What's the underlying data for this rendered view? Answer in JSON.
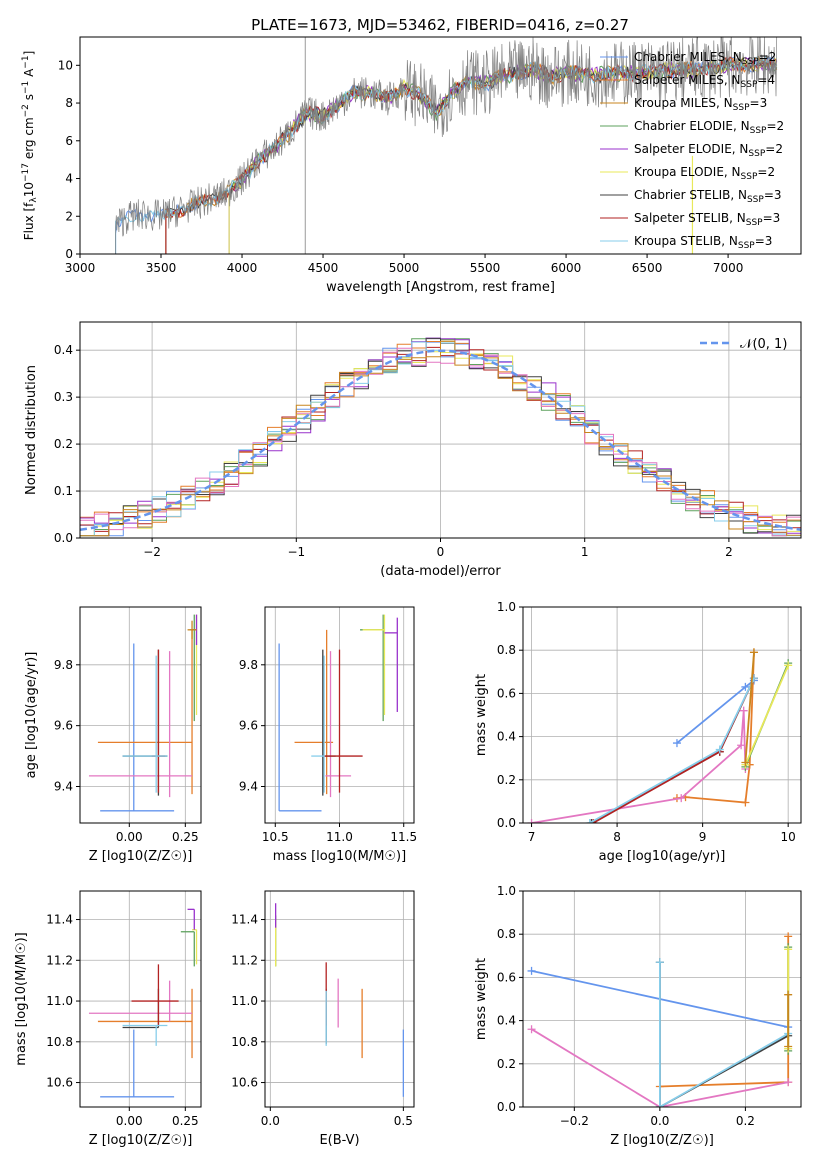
{
  "figure": {
    "title": "PLATE=1673, MJD=53462, FIBERID=0416, z=0.27"
  },
  "chart_data": [
    {
      "id": "spectrum",
      "type": "line",
      "title": "PLATE=1673, MJD=53462, FIBERID=0416, z=0.27",
      "xlabel": "wavelength [Angstrom, rest frame]",
      "ylabel": "Flux [f_λ 10^-17 erg cm^-2 s^-1 A^-1]",
      "xlim": [
        3000,
        7450
      ],
      "ylim": [
        0,
        11.5
      ],
      "xticks": [
        3000,
        3500,
        4000,
        4500,
        5000,
        5500,
        6000,
        6500,
        7000
      ],
      "yticks": [
        0,
        2,
        4,
        6,
        8,
        10
      ],
      "grid": false,
      "legend": "top-right",
      "data_curve": {
        "x": [
          3220,
          3300,
          3400,
          3500,
          3600,
          3700,
          3800,
          3900,
          4000,
          4100,
          4200,
          4300,
          4400,
          4500,
          4600,
          4700,
          4800,
          4900,
          5000,
          5100,
          5200,
          5300,
          5400,
          5500,
          5600,
          5700,
          5800,
          5900,
          6000,
          6200,
          6400,
          6600,
          6800,
          7000,
          7200,
          7300
        ],
        "values": [
          1.5,
          2.0,
          2.1,
          2.0,
          2.3,
          2.6,
          2.9,
          3.2,
          3.9,
          5.0,
          5.6,
          6.5,
          7.5,
          7.3,
          8.0,
          8.6,
          8.5,
          8.2,
          8.8,
          8.4,
          7.5,
          8.6,
          9.2,
          9.0,
          9.4,
          9.6,
          9.8,
          9.4,
          9.6,
          9.5,
          9.6,
          9.7,
          9.8,
          10.0,
          10.1,
          10.0
        ]
      },
      "model_lines": [
        {
          "name": "Chabrier MILES, N_SSP=2",
          "color": "#6495ED",
          "start": 3220
        },
        {
          "name": "Salpeter MILES, N_SSP=4",
          "color": "#E57E2B",
          "start": 3530
        },
        {
          "name": "Kroupa MILES, N_SSP=3",
          "color": "#C8861E",
          "start": 3530
        },
        {
          "name": "Chabrier ELODIE, N_SSP=2",
          "color": "#5EA25E",
          "start": 3920
        },
        {
          "name": "Salpeter ELODIE, N_SSP=2",
          "color": "#9932CC",
          "start": 3920
        },
        {
          "name": "Kroupa ELODIE, N_SSP=2",
          "color": "#E8E85A",
          "start": 3920
        },
        {
          "name": "Chabrier STELIB, N_SSP=3",
          "color": "#404040",
          "start": 3530
        },
        {
          "name": "Salpeter STELIB, N_SSP=3",
          "color": "#B22222",
          "start": 3530
        },
        {
          "name": "Kroupa STELIB, N_SSP=3",
          "color": "#87CEEB",
          "start": 3220
        }
      ],
      "legend_entries": [
        "Chabrier MILES, N_SSP=2",
        "Salpeter MILES, N_SSP=4",
        "Kroupa MILES, N_SSP=3",
        "Chabrier ELODIE, N_SSP=2",
        "Salpeter ELODIE, N_SSP=2",
        "Kroupa ELODIE, N_SSP=2",
        "Chabrier STELIB, N_SSP=3",
        "Salpeter STELIB, N_SSP=3",
        "Kroupa STELIB, N_SSP=3"
      ]
    },
    {
      "id": "residuals",
      "type": "line",
      "xlabel": "(data-model)/error",
      "ylabel": "Normed distribution",
      "xlim": [
        -2.5,
        2.5
      ],
      "ylim": [
        0,
        0.46
      ],
      "xticks": [
        -2,
        -1,
        0,
        1,
        2
      ],
      "yticks": [
        0.0,
        0.1,
        0.2,
        0.3,
        0.4
      ],
      "grid": true,
      "legend": "top-right",
      "legend_entries": [
        "𝒩(0, 1)"
      ],
      "bin_width": 0.1,
      "curve": {
        "name": "𝒩(0, 1)",
        "mean": 0,
        "sigma": 1,
        "color": "#6495ED"
      },
      "histogram_colors": [
        "#6495ED",
        "#E57E2B",
        "#5EA25E",
        "#9932CC",
        "#E8E85A",
        "#404040",
        "#B22222",
        "#87CEEB",
        "#E377C2",
        "#C8861E"
      ]
    },
    {
      "id": "z-age",
      "type": "scatter",
      "xlabel": "Z [log10(Z/Z☉)]",
      "ylabel": "age  [log10(age/yr)]",
      "xlim": [
        -0.22,
        0.32
      ],
      "ylim": [
        9.28,
        9.99
      ],
      "xticks": [
        0.0,
        0.25
      ],
      "yticks": [
        9.4,
        9.6,
        9.8
      ],
      "grid": true,
      "errorbars": [
        {
          "color": "#6495ED",
          "x": 0.02,
          "xerr": [
            0.15,
            0.18
          ],
          "y": 9.32,
          "yerr": [
            0.0,
            0.55
          ]
        },
        {
          "color": "#E57E2B",
          "x": 0.28,
          "xerr": [
            0.42,
            0.0
          ],
          "y": 9.545,
          "yerr": [
            0.17,
            0.37
          ]
        },
        {
          "color": "#E377C2",
          "x": 0.18,
          "xerr": [
            0.36,
            0.1
          ],
          "y": 9.435,
          "yerr": [
            0.07,
            0.41
          ]
        },
        {
          "color": "#404040",
          "x": 0.13,
          "xerr": [
            0.16,
            0.04
          ],
          "y": 9.5,
          "yerr": [
            0.13,
            0.35
          ]
        },
        {
          "color": "#B22222",
          "x": 0.13,
          "xerr": [
            0.03,
            0.03
          ],
          "y": 9.5,
          "yerr": [
            0.12,
            0.35
          ]
        },
        {
          "color": "#87CEEB",
          "x": 0.12,
          "xerr": [
            0.15,
            0.05
          ],
          "y": 9.5,
          "yerr": [
            0.12,
            0.33
          ]
        },
        {
          "color": "#5EA25E",
          "x": 0.29,
          "xerr": [
            0.02,
            0.01
          ],
          "y": 9.915,
          "yerr": [
            0.3,
            0.05
          ]
        },
        {
          "color": "#E8E85A",
          "x": 0.3,
          "xerr": [
            0.01,
            0.0
          ],
          "y": 9.915,
          "yerr": [
            0.28,
            0.05
          ]
        },
        {
          "color": "#9932CC",
          "x": 0.3,
          "xerr": [
            0.02,
            0.0
          ],
          "y": 9.915,
          "yerr": [
            0.05,
            0.05
          ]
        },
        {
          "color": "#C8861E",
          "x": 0.28,
          "xerr": [
            0.02,
            0.02
          ],
          "y": 9.915,
          "yerr": [
            0.03,
            0.03
          ]
        }
      ]
    },
    {
      "id": "mass-age",
      "type": "scatter",
      "xlabel": "mass [log10(M/M☉)]",
      "ylabel": "",
      "xlim": [
        10.42,
        11.58
      ],
      "ylim": [
        9.28,
        9.99
      ],
      "xticks": [
        10.5,
        11.0,
        11.5
      ],
      "yticks": [
        9.4,
        9.6,
        9.8
      ],
      "grid": true,
      "errorbars": [
        {
          "color": "#6495ED",
          "x": 10.53,
          "xerr": [
            0.0,
            0.33
          ],
          "y": 9.32,
          "yerr": [
            0.0,
            0.55
          ]
        },
        {
          "color": "#E57E2B",
          "x": 10.9,
          "xerr": [
            0.25,
            0.05
          ],
          "y": 9.545,
          "yerr": [
            0.17,
            0.37
          ]
        },
        {
          "color": "#E377C2",
          "x": 10.93,
          "xerr": [
            0.04,
            0.16
          ],
          "y": 9.435,
          "yerr": [
            0.07,
            0.41
          ]
        },
        {
          "color": "#404040",
          "x": 10.87,
          "xerr": [
            0.0,
            0.1
          ],
          "y": 9.5,
          "yerr": [
            0.13,
            0.35
          ]
        },
        {
          "color": "#B22222",
          "x": 11.0,
          "xerr": [
            0.12,
            0.18
          ],
          "y": 9.5,
          "yerr": [
            0.12,
            0.35
          ]
        },
        {
          "color": "#87CEEB",
          "x": 10.88,
          "xerr": [
            0.1,
            0.0
          ],
          "y": 9.5,
          "yerr": [
            0.12,
            0.33
          ]
        },
        {
          "color": "#5EA25E",
          "x": 11.34,
          "xerr": [
            0.18,
            0.0
          ],
          "y": 9.915,
          "yerr": [
            0.3,
            0.05
          ]
        },
        {
          "color": "#E8E85A",
          "x": 11.35,
          "xerr": [
            0.17,
            0.0
          ],
          "y": 9.915,
          "yerr": [
            0.28,
            0.05
          ]
        },
        {
          "color": "#9932CC",
          "x": 11.45,
          "xerr": [
            0.1,
            0.0
          ],
          "y": 9.905,
          "yerr": [
            0.26,
            0.05
          ]
        }
      ]
    },
    {
      "id": "age-massweight",
      "type": "line",
      "xlabel": "age  [log10(age/yr)]",
      "ylabel": "mass weight",
      "xlim": [
        6.9,
        10.15
      ],
      "ylim": [
        0,
        1.0
      ],
      "xticks": [
        7,
        8,
        9,
        10
      ],
      "yticks": [
        0.0,
        0.2,
        0.4,
        0.6,
        0.8,
        1.0
      ],
      "grid": true,
      "series": [
        {
          "color": "#6495ED",
          "x": [
            8.7,
            9.5,
            9.6
          ],
          "values": [
            0.37,
            0.63,
            0.66
          ]
        },
        {
          "color": "#E57E2B",
          "x": [
            8.7,
            8.8,
            9.5,
            9.55,
            9.6
          ],
          "values": [
            0.115,
            0.12,
            0.095,
            0.27,
            0.79
          ]
        },
        {
          "color": "#E377C2",
          "x": [
            7.0,
            8.75,
            9.45,
            9.48,
            9.5
          ],
          "values": [
            0.0,
            0.115,
            0.36,
            0.52,
            0.25
          ]
        },
        {
          "color": "#404040",
          "x": [
            7.7,
            9.2,
            9.6
          ],
          "values": [
            0.0,
            0.33,
            0.67
          ]
        },
        {
          "color": "#B22222",
          "x": [
            7.72,
            9.2,
            9.6
          ],
          "values": [
            0.0,
            0.33,
            0.67
          ]
        },
        {
          "color": "#87CEEB",
          "x": [
            7.68,
            9.2,
            9.6
          ],
          "values": [
            0.0,
            0.34,
            0.67
          ]
        },
        {
          "color": "#5EA25E",
          "x": [
            9.5,
            10.0
          ],
          "values": [
            0.26,
            0.74
          ]
        },
        {
          "color": "#E8E85A",
          "x": [
            9.5,
            10.0
          ],
          "values": [
            0.27,
            0.73
          ]
        },
        {
          "color": "#C8861E",
          "x": [
            9.5,
            9.6
          ],
          "values": [
            0.28,
            0.79
          ]
        }
      ]
    },
    {
      "id": "z-mass",
      "type": "scatter",
      "xlabel": "Z [log10(Z/Z☉)]",
      "ylabel": "mass [log10(M/M☉)]",
      "xlim": [
        -0.22,
        0.32
      ],
      "ylim": [
        10.48,
        11.54
      ],
      "xticks": [
        0.0,
        0.25
      ],
      "yticks": [
        10.6,
        10.8,
        11.0,
        11.2,
        11.4
      ],
      "grid": true,
      "errorbars": [
        {
          "color": "#6495ED",
          "x": 0.02,
          "xerr": [
            0.15,
            0.18
          ],
          "y": 10.53,
          "yerr": [
            0.0,
            0.33
          ]
        },
        {
          "color": "#E57E2B",
          "x": 0.28,
          "xerr": [
            0.42,
            0.0
          ],
          "y": 10.9,
          "yerr": [
            0.18,
            0.16
          ]
        },
        {
          "color": "#E377C2",
          "x": 0.18,
          "xerr": [
            0.36,
            0.1
          ],
          "y": 10.94,
          "yerr": [
            0.04,
            0.16
          ]
        },
        {
          "color": "#404040",
          "x": 0.13,
          "xerr": [
            0.16,
            0.0
          ],
          "y": 10.87,
          "yerr": [
            0.0,
            0.19
          ]
        },
        {
          "color": "#B22222",
          "x": 0.13,
          "xerr": [
            0.12,
            0.09
          ],
          "y": 11.0,
          "yerr": [
            0.12,
            0.18
          ]
        },
        {
          "color": "#87CEEB",
          "x": 0.12,
          "xerr": [
            0.15,
            0.05
          ],
          "y": 10.88,
          "yerr": [
            0.1,
            0.0
          ]
        },
        {
          "color": "#5EA25E",
          "x": 0.29,
          "xerr": [
            0.06,
            0.0
          ],
          "y": 11.34,
          "yerr": [
            0.17,
            0.0
          ]
        },
        {
          "color": "#E8E85A",
          "x": 0.3,
          "xerr": [
            0.02,
            0.0
          ],
          "y": 11.35,
          "yerr": [
            0.17,
            0.0
          ]
        },
        {
          "color": "#9932CC",
          "x": 0.29,
          "xerr": [
            0.03,
            0.0
          ],
          "y": 11.45,
          "yerr": [
            0.1,
            0.0
          ]
        }
      ]
    },
    {
      "id": "ebv-mass",
      "type": "scatter",
      "xlabel": "E(B-V)",
      "ylabel": "",
      "xlim": [
        -0.02,
        0.54
      ],
      "ylim": [
        10.48,
        11.54
      ],
      "xticks": [
        0.0,
        0.5
      ],
      "yticks": [
        10.6,
        10.8,
        11.0,
        11.2,
        11.4
      ],
      "grid": true,
      "errorbars": [
        {
          "color": "#6495ED",
          "x": 0.5,
          "xerr": [
            0.0,
            0.0
          ],
          "y": 10.53,
          "yerr": [
            0.0,
            0.33
          ]
        },
        {
          "color": "#E57E2B",
          "x": 0.345,
          "xerr": [
            0.0,
            0.0
          ],
          "y": 10.9,
          "yerr": [
            0.18,
            0.16
          ]
        },
        {
          "color": "#E377C2",
          "x": 0.255,
          "xerr": [
            0.0,
            0.0
          ],
          "y": 10.94,
          "yerr": [
            0.07,
            0.17
          ]
        },
        {
          "color": "#404040",
          "x": 0.21,
          "xerr": [
            0.0,
            0.0
          ],
          "y": 10.87,
          "yerr": [
            0.08,
            0.19
          ]
        },
        {
          "color": "#B22222",
          "x": 0.21,
          "xerr": [
            0.0,
            0.0
          ],
          "y": 11.0,
          "yerr": [
            0.12,
            0.19
          ]
        },
        {
          "color": "#87CEEB",
          "x": 0.21,
          "xerr": [
            0.0,
            0.0
          ],
          "y": 10.88,
          "yerr": [
            0.1,
            0.17
          ]
        },
        {
          "color": "#5EA25E",
          "x": 0.02,
          "xerr": [
            0.0,
            0.0
          ],
          "y": 11.34,
          "yerr": [
            0.17,
            0.08
          ]
        },
        {
          "color": "#E8E85A",
          "x": 0.02,
          "xerr": [
            0.0,
            0.0
          ],
          "y": 11.32,
          "yerr": [
            0.15,
            0.08
          ]
        },
        {
          "color": "#9932CC",
          "x": 0.02,
          "xerr": [
            0.0,
            0.0
          ],
          "y": 11.42,
          "yerr": [
            0.06,
            0.06
          ]
        }
      ]
    },
    {
      "id": "z-massweight",
      "type": "line",
      "xlabel": "Z [log10(Z/Z☉)]",
      "ylabel": "mass weight",
      "xlim": [
        -0.32,
        0.33
      ],
      "ylim": [
        0,
        1.0
      ],
      "xticks": [
        -0.2,
        0.0,
        0.2
      ],
      "yticks": [
        0.0,
        0.2,
        0.4,
        0.6,
        0.8,
        1.0
      ],
      "grid": true,
      "series": [
        {
          "color": "#6495ED",
          "x": [
            -0.3,
            0.3
          ],
          "values": [
            0.63,
            0.37
          ]
        },
        {
          "color": "#E57E2B",
          "x": [
            0.0,
            0.3,
            0.3
          ],
          "values": [
            0.095,
            0.115,
            0.79
          ]
        },
        {
          "color": "#E377C2",
          "x": [
            -0.3,
            0.0,
            0.3
          ],
          "values": [
            0.36,
            0.0,
            0.115
          ]
        },
        {
          "color": "#404040",
          "x": [
            0.0,
            0.0,
            0.3
          ],
          "values": [
            0.67,
            0.0,
            0.33
          ]
        },
        {
          "color": "#87CEEB",
          "x": [
            0.0,
            0.0,
            0.3
          ],
          "values": [
            0.67,
            0.0,
            0.34
          ]
        },
        {
          "color": "#5EA25E",
          "x": [
            0.3,
            0.3
          ],
          "values": [
            0.26,
            0.74
          ]
        },
        {
          "color": "#E8E85A",
          "x": [
            0.3,
            0.3
          ],
          "values": [
            0.27,
            0.73
          ]
        },
        {
          "color": "#C8861E",
          "x": [
            0.3,
            0.3
          ],
          "values": [
            0.28,
            0.52
          ]
        }
      ]
    }
  ]
}
